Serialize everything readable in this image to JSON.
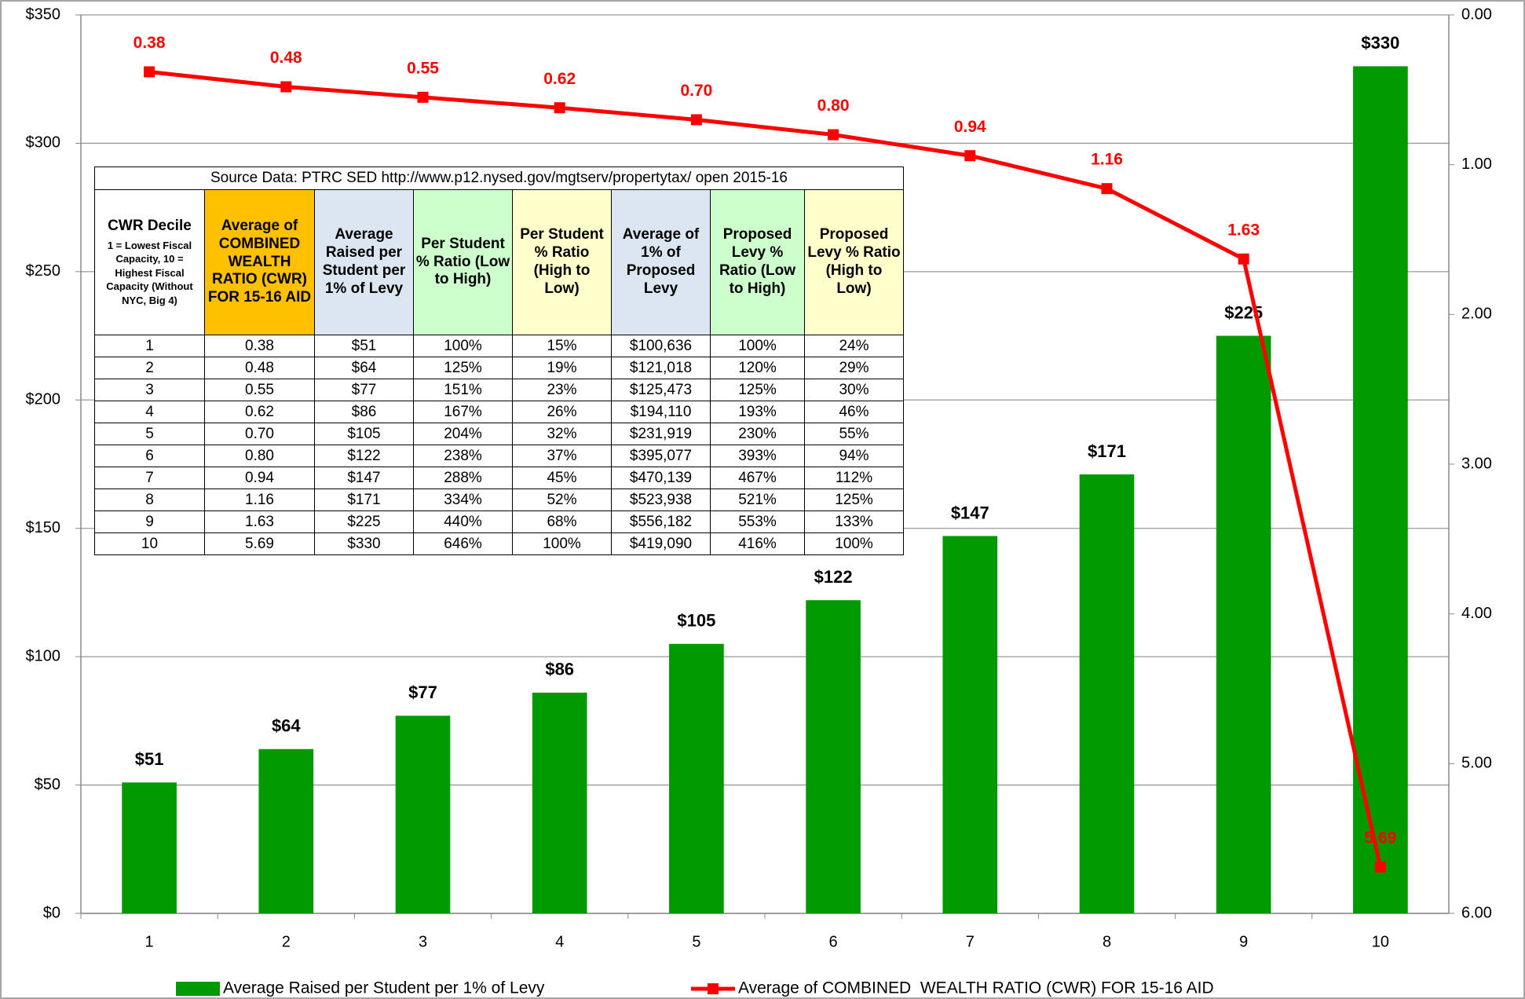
{
  "chart_data": {
    "type": "bar",
    "categories": [
      "1",
      "2",
      "3",
      "4",
      "5",
      "6",
      "7",
      "8",
      "9",
      "10"
    ],
    "series": [
      {
        "name": "Average Raised per Student per 1% of Levy",
        "type": "bar",
        "color": "#009900",
        "values": [
          51,
          64,
          77,
          86,
          105,
          122,
          147,
          171,
          225,
          330
        ],
        "value_labels": [
          "$51",
          "$64",
          "$77",
          "$86",
          "$105",
          "$122",
          "$147",
          "$171",
          "$225",
          "$330"
        ]
      },
      {
        "name": "Average of COMBINED  WEALTH RATIO (CWR) FOR 15-16 AID",
        "type": "line",
        "color": "#ff0000",
        "axis": "y2",
        "values": [
          0.38,
          0.48,
          0.55,
          0.62,
          0.7,
          0.8,
          0.94,
          1.16,
          1.63,
          5.69
        ],
        "value_labels": [
          "0.38",
          "0.48",
          "0.55",
          "0.62",
          "0.70",
          "0.80",
          "0.94",
          "1.16",
          "1.63",
          "5.69"
        ]
      }
    ],
    "ylim": [
      0,
      350
    ],
    "yticks": [
      {
        "value": 0,
        "label": "$0"
      },
      {
        "value": 50,
        "label": "$50"
      },
      {
        "value": 100,
        "label": "$100"
      },
      {
        "value": 150,
        "label": "$150"
      },
      {
        "value": 200,
        "label": "$200"
      },
      {
        "value": 250,
        "label": "$250"
      },
      {
        "value": 300,
        "label": "$300"
      },
      {
        "value": 350,
        "label": "$350"
      }
    ],
    "y2lim": [
      6,
      0
    ],
    "y2ticks": [
      {
        "value": 0,
        "label": "0.00"
      },
      {
        "value": 1,
        "label": "1.00"
      },
      {
        "value": 2,
        "label": "2.00"
      },
      {
        "value": 3,
        "label": "3.00"
      },
      {
        "value": 4,
        "label": "4.00"
      },
      {
        "value": 5,
        "label": "5.00"
      },
      {
        "value": 6,
        "label": "6.00"
      }
    ],
    "grid": true,
    "legend": "bottom",
    "table": {
      "caption": "Source Data: PTRC SED http://www.p12.nysed.gov/mgtserv/propertytax/     open 2015-16",
      "headers": [
        "CWR Decile",
        "Average of COMBINED WEALTH RATIO (CWR) FOR 15-16 AID",
        "Average Raised per Student per 1% of Levy",
        "Per Student % Ratio (Low to High)",
        "Per Student % Ratio (High to Low)",
        "Average of 1% of Proposed Levy",
        "Proposed Levy % Ratio (Low to High)",
        "Proposed Levy % Ratio (High to Low)"
      ],
      "header_note": "1 = Lowest Fiscal Capacity, 10 = Highest Fiscal Capacity (Without NYC, Big 4)",
      "rows": [
        [
          "1",
          "0.38",
          "$51",
          "100%",
          "15%",
          "$100,636",
          "100%",
          "24%"
        ],
        [
          "2",
          "0.48",
          "$64",
          "125%",
          "19%",
          "$121,018",
          "120%",
          "29%"
        ],
        [
          "3",
          "0.55",
          "$77",
          "151%",
          "23%",
          "$125,473",
          "125%",
          "30%"
        ],
        [
          "4",
          "0.62",
          "$86",
          "167%",
          "26%",
          "$194,110",
          "193%",
          "46%"
        ],
        [
          "5",
          "0.70",
          "$105",
          "204%",
          "32%",
          "$231,919",
          "230%",
          "55%"
        ],
        [
          "6",
          "0.80",
          "$122",
          "238%",
          "37%",
          "$395,077",
          "393%",
          "94%"
        ],
        [
          "7",
          "0.94",
          "$147",
          "288%",
          "45%",
          "$470,139",
          "467%",
          "112%"
        ],
        [
          "8",
          "1.16",
          "$171",
          "334%",
          "52%",
          "$523,938",
          "521%",
          "125%"
        ],
        [
          "9",
          "1.63",
          "$225",
          "440%",
          "68%",
          "$556,182",
          "553%",
          "133%"
        ],
        [
          "10",
          "5.69",
          "$330",
          "646%",
          "100%",
          "$419,090",
          "416%",
          "100%"
        ]
      ]
    }
  }
}
